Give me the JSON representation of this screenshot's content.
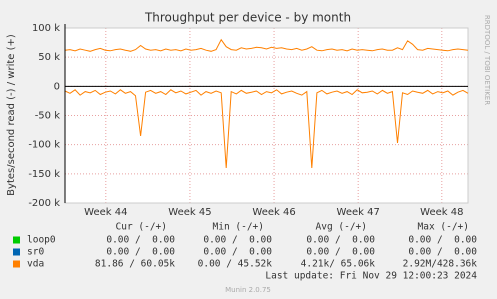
{
  "chart_data": {
    "type": "line",
    "title": "Throughput per device - by month",
    "ylabel": "Bytes/second read (-) / write (+)",
    "side_label": "RRDTOOL / TOBI OETIKER",
    "ylim": [
      -200000,
      100000
    ],
    "yticks": [
      {
        "value": 100000,
        "label": "100 k"
      },
      {
        "value": 50000,
        "label": "50 k"
      },
      0,
      {
        "value": -50000,
        "label": "-50 k"
      },
      {
        "value": -100000,
        "label": "-100 k"
      },
      {
        "value": -150000,
        "label": "-150 k"
      },
      {
        "value": -200000,
        "label": "-200 k"
      }
    ],
    "xlim": [
      0,
      80
    ],
    "xticks": [
      {
        "value": 8.1,
        "label": "Week 44"
      },
      {
        "value": 24.8,
        "label": "Week 45"
      },
      {
        "value": 41.5,
        "label": "Week 46"
      },
      {
        "value": 58.2,
        "label": "Week 47"
      },
      {
        "value": 74.8,
        "label": "Week 48"
      }
    ],
    "grid": true,
    "legend_columns": [
      "Cur (-/+)",
      "Min (-/+)",
      "Avg (-/+)",
      "Max (-/+)"
    ],
    "series": [
      {
        "name": "loop0",
        "color": "#00cc00",
        "stats": [
          "0.00 /  0.00",
          "0.00 /  0.00",
          "0.00 /  0.00",
          "0.00 /  0.00"
        ]
      },
      {
        "name": "sr0",
        "color": "#0066b3",
        "stats": [
          "0.00 /  0.00",
          "0.00 /  0.00",
          "0.00 /  0.00",
          "0.00 /  0.00"
        ]
      },
      {
        "name": "vda",
        "color": "#ff8000",
        "stats": [
          "81.86 / 60.05k",
          "0.00 / 45.52k",
          "4.21k/ 65.06k",
          "2.92M/428.36k"
        ],
        "values": [
          62000,
          63000,
          61000,
          64000,
          62000,
          60000,
          63000,
          65000,
          62000,
          61000,
          63000,
          64000,
          62000,
          60000,
          63000,
          70000,
          64000,
          62000,
          63000,
          61000,
          64000,
          62000,
          63000,
          61000,
          64000,
          62000,
          63000,
          65000,
          62000,
          60000,
          63000,
          80000,
          68000,
          63000,
          62000,
          66000,
          64000,
          65000,
          67000,
          66000,
          64000,
          67000,
          65000,
          66000,
          64000,
          63000,
          65000,
          62000,
          64000,
          68000,
          62000,
          61000,
          63000,
          64000,
          62000,
          63000,
          61000,
          64000,
          62000,
          63000,
          62000,
          61000,
          63000,
          64000,
          62000,
          62000,
          66000,
          63000,
          78000,
          72000,
          63000,
          62000,
          65000,
          64000,
          63000,
          62000,
          61000,
          63000,
          64000,
          63000,
          62000
        ],
        "read_values": [
          -8000,
          -12000,
          -6000,
          -15000,
          -9000,
          -11000,
          -7000,
          -14000,
          -10000,
          -8000,
          -13000,
          -6000,
          -12000,
          -9000,
          -16000,
          -85000,
          -10000,
          -7000,
          -12000,
          -9000,
          -14000,
          -6000,
          -11000,
          -8000,
          -13000,
          -10000,
          -7000,
          -15000,
          -9000,
          -12000,
          -8000,
          -11000,
          -140000,
          -9000,
          -13000,
          -7000,
          -12000,
          -10000,
          -8000,
          -14000,
          -9000,
          -11000,
          -6000,
          -13000,
          -10000,
          -8000,
          -12000,
          -15000,
          -9000,
          -140000,
          -11000,
          -7000,
          -13000,
          -10000,
          -8000,
          -12000,
          -9000,
          -14000,
          -6000,
          -11000,
          -10000,
          -8000,
          -13000,
          -7000,
          -12000,
          -9000,
          -97000,
          -11000,
          -14000,
          -8000,
          -10000,
          -12000,
          -7000,
          -13000,
          -9000,
          -11000,
          -8000,
          -15000,
          -10000,
          -7000,
          -12000
        ]
      }
    ],
    "last_update": "Last update: Fri Nov 29 12:00:23 2024",
    "footer": "Munin 2.0.75"
  }
}
